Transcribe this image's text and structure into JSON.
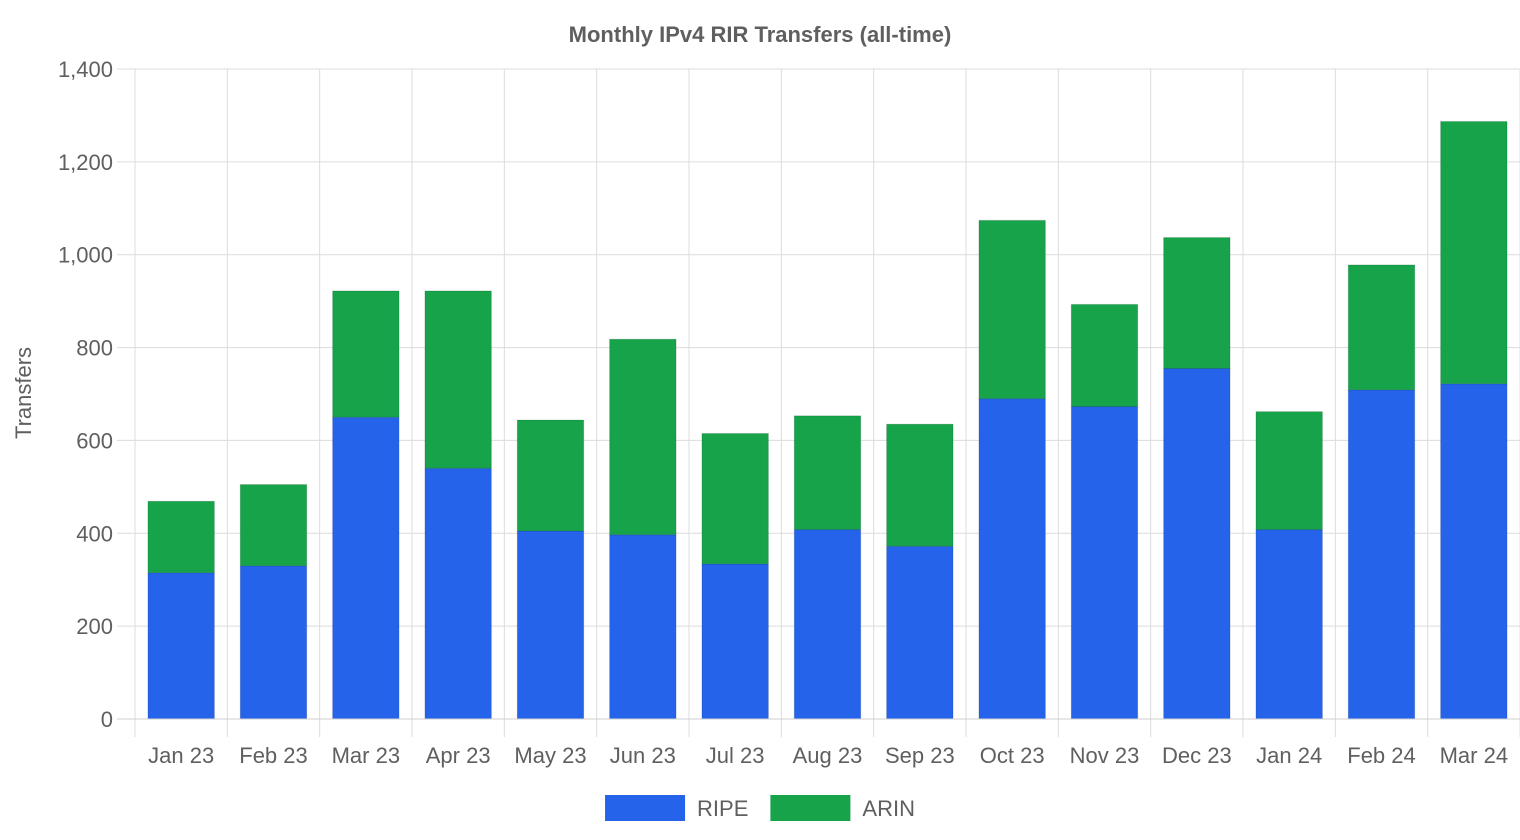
{
  "chart_data": {
    "type": "bar",
    "stacked": true,
    "title": "Monthly IPv4 RIR Transfers (all-time)",
    "xlabel": "",
    "ylabel": "Transfers",
    "ylim": [
      0,
      1400
    ],
    "yticks": [
      0,
      200,
      400,
      600,
      800,
      1000,
      1200,
      1400
    ],
    "ytick_labels": [
      "0",
      "200",
      "400",
      "600",
      "800",
      "1,000",
      "1,200",
      "1,400"
    ],
    "grid": true,
    "legend_position": "bottom-center",
    "categories": [
      "Jan 23",
      "Feb 23",
      "Mar 23",
      "Apr 23",
      "May 23",
      "Jun 23",
      "Jul 23",
      "Aug 23",
      "Sep 23",
      "Oct 23",
      "Nov 23",
      "Dec 23",
      "Jan 24",
      "Feb 24",
      "Mar 24"
    ],
    "series": [
      {
        "name": "RIPE",
        "color": "#2563eb",
        "values": [
          315,
          330,
          650,
          540,
          405,
          397,
          334,
          408,
          372,
          690,
          673,
          755,
          408,
          709,
          722
        ]
      },
      {
        "name": "ARIN",
        "color": "#16a34a",
        "values": [
          154,
          175,
          272,
          382,
          239,
          421,
          281,
          245,
          263,
          384,
          220,
          282,
          254,
          269,
          565
        ]
      }
    ]
  }
}
